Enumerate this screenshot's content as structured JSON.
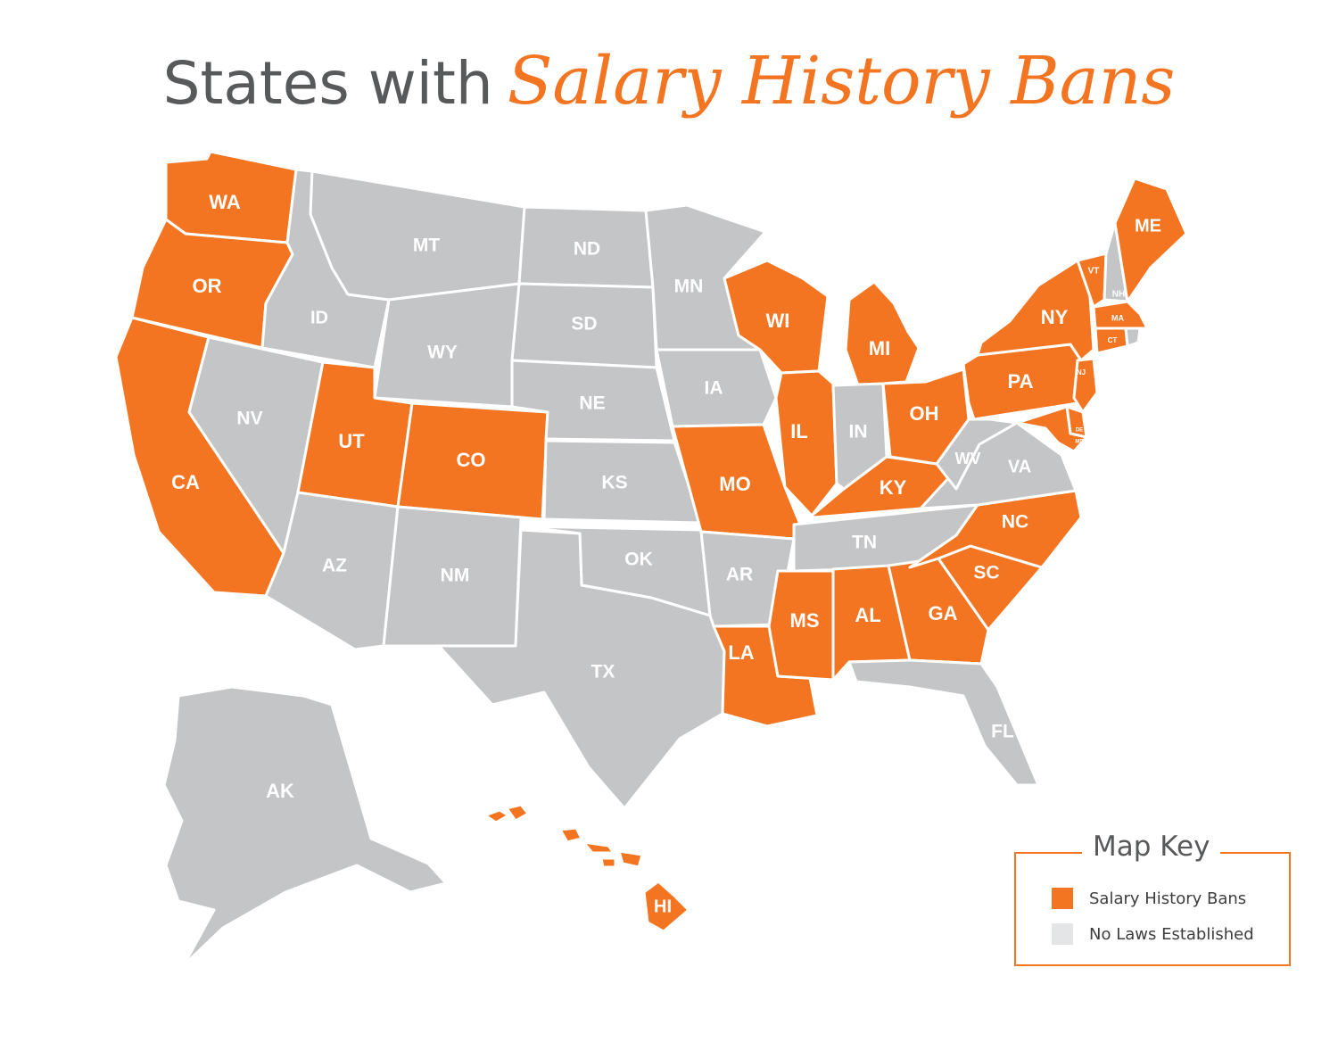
{
  "title": {
    "plain": "States with",
    "accent": "Salary History Bans"
  },
  "colors": {
    "ban": "#f37521",
    "none": "#c4c5c7",
    "legend_none": "#e4e5e6",
    "title_gray": "#58595b"
  },
  "legend": {
    "title": "Map Key",
    "items": [
      {
        "label": "Salary History Bans",
        "status": "ban"
      },
      {
        "label": "No Laws Established",
        "status": "none"
      }
    ]
  },
  "states": {
    "WA": "ban",
    "OR": "ban",
    "CA": "ban",
    "ID": "none",
    "NV": "none",
    "MT": "none",
    "WY": "none",
    "UT": "ban",
    "CO": "ban",
    "AZ": "none",
    "NM": "none",
    "ND": "none",
    "SD": "none",
    "NE": "none",
    "KS": "none",
    "OK": "none",
    "TX": "none",
    "MN": "none",
    "IA": "none",
    "MO": "ban",
    "AR": "none",
    "LA": "ban",
    "WI": "ban",
    "IL": "ban",
    "MI": "ban",
    "IN": "none",
    "OH": "ban",
    "KY": "ban",
    "TN": "none",
    "MS": "ban",
    "AL": "ban",
    "GA": "ban",
    "FL": "none",
    "SC": "ban",
    "NC": "ban",
    "VA": "none",
    "WV": "none",
    "PA": "ban",
    "NY": "ban",
    "VT": "ban",
    "NH": "none",
    "ME": "ban",
    "MA": "ban",
    "CT": "ban",
    "RI": "none",
    "NJ": "ban",
    "DE": "ban",
    "MD": "ban",
    "AK": "none",
    "HI": "ban"
  }
}
